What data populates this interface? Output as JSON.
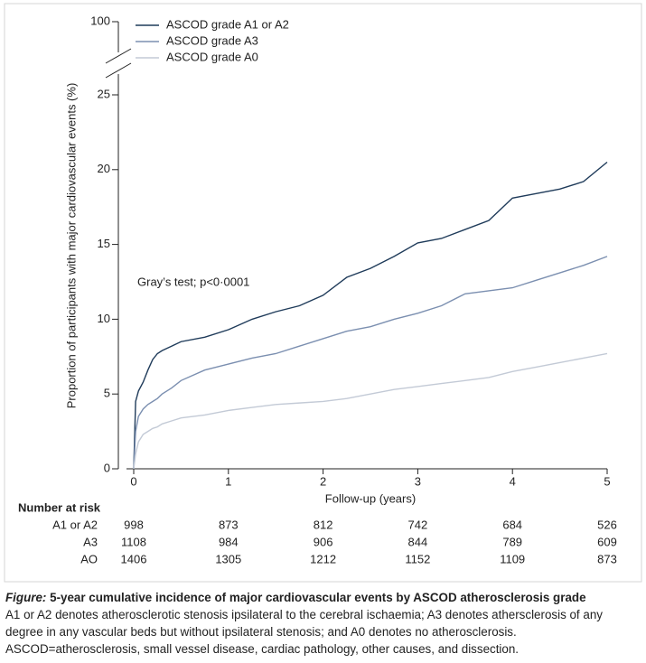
{
  "chart_data": {
    "type": "line",
    "y_label": "Proportion of participants with major cardiovascular events (%)",
    "x_label": "Follow-up (years)",
    "annotation": "Gray’s test; p<0·0001",
    "x": [
      0,
      0.02,
      0.05,
      0.1,
      0.15,
      0.2,
      0.25,
      0.3,
      0.4,
      0.5,
      0.75,
      1.0,
      1.25,
      1.5,
      1.75,
      2.0,
      2.25,
      2.5,
      2.75,
      3.0,
      3.25,
      3.5,
      3.75,
      4.0,
      4.25,
      4.5,
      4.75,
      5.0
    ],
    "series": [
      {
        "name": "ASCOD grade A1 or A2",
        "color": "#1f3b5a",
        "values": [
          0,
          4.5,
          5.2,
          5.8,
          6.6,
          7.3,
          7.7,
          7.9,
          8.2,
          8.5,
          8.8,
          9.3,
          10.0,
          10.5,
          10.9,
          11.6,
          12.8,
          13.4,
          14.2,
          15.1,
          15.4,
          16.0,
          16.6,
          18.1,
          18.4,
          18.7,
          19.2,
          20.5
        ]
      },
      {
        "name": "ASCOD grade A3",
        "color": "#7b8fb0",
        "values": [
          0,
          2.5,
          3.5,
          4.0,
          4.3,
          4.5,
          4.7,
          5.0,
          5.4,
          5.9,
          6.6,
          7.0,
          7.4,
          7.7,
          8.2,
          8.7,
          9.2,
          9.5,
          10.0,
          10.4,
          10.9,
          11.7,
          11.9,
          12.1,
          12.6,
          13.1,
          13.6,
          14.2
        ]
      },
      {
        "name": "ASCOD grade A0",
        "color": "#c3cad6",
        "values": [
          0,
          1.0,
          1.8,
          2.3,
          2.5,
          2.7,
          2.8,
          3.0,
          3.2,
          3.4,
          3.6,
          3.9,
          4.1,
          4.3,
          4.4,
          4.5,
          4.7,
          5.0,
          5.3,
          5.5,
          5.7,
          5.9,
          6.1,
          6.5,
          6.8,
          7.1,
          7.4,
          7.7
        ]
      }
    ],
    "xlim": [
      0,
      5
    ],
    "xticks": [
      0,
      1,
      2,
      3,
      4,
      5
    ],
    "ylim": [
      0,
      100
    ],
    "yticks": [
      0,
      5,
      10,
      15,
      20,
      25,
      100
    ],
    "axis_break": true,
    "legend": "top-left"
  },
  "risk_table": {
    "title": "Number at risk",
    "rows": [
      {
        "label": "A1 or A2",
        "values": [
          "998",
          "873",
          "812",
          "742",
          "684",
          "526"
        ]
      },
      {
        "label": "A3",
        "values": [
          "1108",
          "984",
          "906",
          "844",
          "789",
          "609"
        ]
      },
      {
        "label": "AO",
        "values": [
          "1406",
          "1305",
          "1212",
          "1152",
          "1109",
          "873"
        ]
      }
    ]
  },
  "caption": {
    "label": "Figure:",
    "title": "5-year cumulative incidence of major cardiovascular events by ASCOD atherosclerosis grade",
    "text": "A1 or A2 denotes atherosclerotic stenosis ipsilateral to the cerebral ischaemia; A3 denotes athersclerosis of any degree in any vascular beds but without ipsilateral stenosis; and A0 denotes no atherosclerosis. ASCOD=atherosclerosis, small vessel disease, cardiac pathology, other causes, and dissection."
  }
}
